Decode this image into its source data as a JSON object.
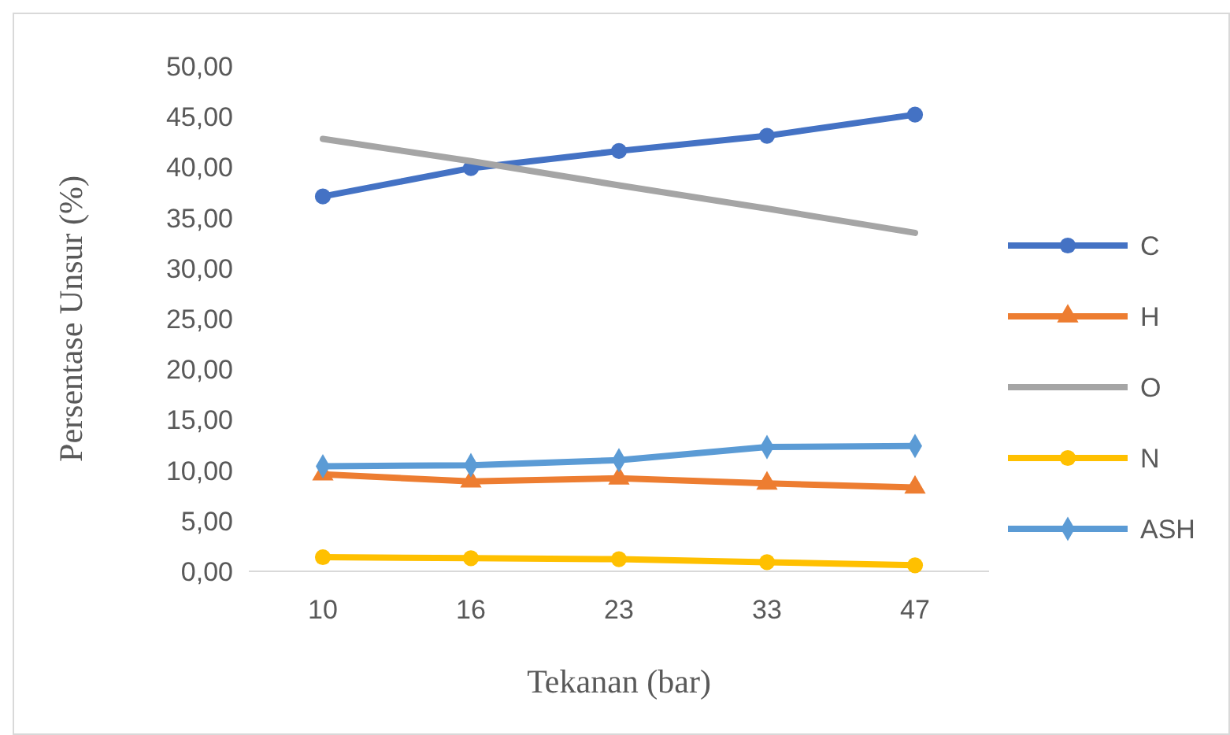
{
  "chart_data": {
    "type": "line",
    "xlabel": "Tekanan (bar)",
    "ylabel": "Persentase Unsur (%)",
    "categories": [
      "10",
      "16",
      "23",
      "33",
      "47"
    ],
    "ylim": [
      0,
      50
    ],
    "yticks": [
      {
        "value": 0,
        "label": "0,00"
      },
      {
        "value": 5,
        "label": "5,00"
      },
      {
        "value": 10,
        "label": "10,00"
      },
      {
        "value": 15,
        "label": "15,00"
      },
      {
        "value": 20,
        "label": "20,00"
      },
      {
        "value": 25,
        "label": "25,00"
      },
      {
        "value": 30,
        "label": "30,00"
      },
      {
        "value": 35,
        "label": "35,00"
      },
      {
        "value": 40,
        "label": "40,00"
      },
      {
        "value": 45,
        "label": "45,00"
      },
      {
        "value": 50,
        "label": "50,00"
      }
    ],
    "grid": false,
    "legend": "right",
    "line_style": "solid",
    "series": [
      {
        "name": "C",
        "color": "#4472c4",
        "marker": "circle",
        "values": [
          37.1,
          39.9,
          41.6,
          43.1,
          45.2
        ]
      },
      {
        "name": "H",
        "color": "#ed7d31",
        "marker": "triangle",
        "values": [
          9.6,
          8.9,
          9.2,
          8.7,
          8.3
        ]
      },
      {
        "name": "O",
        "color": "#a5a5a5",
        "marker": "none",
        "values": [
          42.8,
          40.6,
          38.2,
          35.9,
          33.5
        ]
      },
      {
        "name": "N",
        "color": "#ffc000",
        "marker": "circle",
        "values": [
          1.4,
          1.3,
          1.2,
          0.9,
          0.6
        ]
      },
      {
        "name": "ASH",
        "color": "#5b9bd5",
        "marker": "diamond",
        "values": [
          10.4,
          10.5,
          11.0,
          12.3,
          12.4
        ]
      }
    ]
  }
}
